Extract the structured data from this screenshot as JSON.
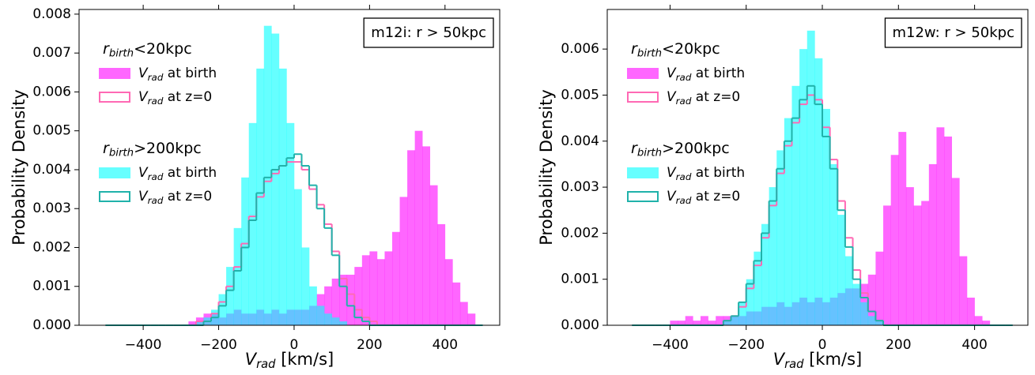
{
  "chart_data": [
    {
      "type": "histogram",
      "annotation": "m12i: r > 50kpc",
      "annotation_location": "upper right",
      "xlabel": [
        "V",
        "rad",
        " [km/s]"
      ],
      "ylabel": "Probability Density",
      "legend_location": "upper left",
      "xlim": [
        -570,
        545
      ],
      "ylim": [
        0,
        0.00812
      ],
      "xticks": [
        {
          "value": -400,
          "label": "−400"
        },
        {
          "value": -200,
          "label": "−200"
        },
        0,
        200,
        400
      ],
      "yticks": [
        {
          "value": 0,
          "label": "0.000"
        },
        {
          "value": 0.001,
          "label": "0.001"
        },
        {
          "value": 0.002,
          "label": "0.002"
        },
        {
          "value": 0.003,
          "label": "0.003"
        },
        {
          "value": 0.004,
          "label": "0.004"
        },
        {
          "value": 0.005,
          "label": "0.005"
        },
        {
          "value": 0.006,
          "label": "0.006"
        },
        {
          "value": 0.007,
          "label": "0.007"
        },
        {
          "value": 0.008,
          "label": "0.008"
        }
      ],
      "bins": [
        -500,
        -480,
        -460,
        -440,
        -420,
        -400,
        -380,
        -360,
        -340,
        -320,
        -300,
        -280,
        -260,
        -240,
        -220,
        -200,
        -180,
        -160,
        -140,
        -120,
        -100,
        -80,
        -60,
        -40,
        -20,
        0,
        20,
        40,
        60,
        80,
        100,
        120,
        140,
        160,
        180,
        200,
        220,
        240,
        260,
        280,
        300,
        320,
        340,
        360,
        380,
        400,
        420,
        440,
        460,
        480,
        500
      ],
      "groups": [
        {
          "title": [
            "r",
            "birth",
            "<20kpc"
          ],
          "series": [
            {
              "name": [
                "V",
                "rad",
                " at birth"
              ],
              "style": "filled",
              "color": "#ff00ff",
              "alpha": 0.6,
              "values": [
                0,
                0,
                0,
                0,
                0,
                0,
                0,
                0,
                0,
                0,
                0,
                0.0001,
                0.0002,
                0.0003,
                0.0003,
                0.0002,
                0.0003,
                0.0004,
                0.0003,
                0.0003,
                0.0004,
                0.0003,
                0.0004,
                0.0003,
                0.0004,
                0.0004,
                0.0004,
                0.0005,
                0.0008,
                0.001,
                0.0012,
                0.0013,
                0.0013,
                0.0015,
                0.0018,
                0.0019,
                0.0017,
                0.0019,
                0.0024,
                0.0033,
                0.0045,
                0.005,
                0.0046,
                0.0036,
                0.0026,
                0.0017,
                0.0011,
                0.0006,
                0.0003,
                0
              ]
            },
            {
              "name": [
                "V",
                "rad",
                " at z=0"
              ],
              "style": "step",
              "color": "#ff69b4",
              "values": [
                0,
                0,
                0,
                0,
                0,
                0,
                0,
                0,
                0,
                0,
                0,
                0,
                0.0001,
                0.0001,
                0.0003,
                0.0006,
                0.001,
                0.0015,
                0.0021,
                0.0028,
                0.0033,
                0.0037,
                0.0039,
                0.0041,
                0.0042,
                0.0042,
                0.004,
                0.0035,
                0.0031,
                0.0026,
                0.0019,
                0.0012,
                0.0008,
                0.0004,
                0.0002,
                0.0001,
                0,
                0,
                0,
                0,
                0,
                0,
                0,
                0,
                0,
                0,
                0,
                0,
                0,
                0
              ]
            }
          ]
        },
        {
          "title": [
            "r",
            "birth",
            ">200kpc"
          ],
          "series": [
            {
              "name": [
                "V",
                "rad",
                " at birth"
              ],
              "style": "filled",
              "color": "#00ffff",
              "alpha": 0.6,
              "values": [
                0,
                0,
                0,
                0,
                0,
                0,
                0,
                0,
                0,
                0,
                0,
                0,
                0.0001,
                0.0002,
                0.0004,
                0.0008,
                0.0015,
                0.0025,
                0.0038,
                0.0052,
                0.0066,
                0.0077,
                0.0075,
                0.0066,
                0.0052,
                0.0035,
                0.002,
                0.001,
                0.0005,
                0.0003,
                0.0002,
                0.0001,
                0,
                0,
                0,
                0,
                0,
                0,
                0,
                0,
                0,
                0,
                0,
                0,
                0,
                0,
                0,
                0,
                0,
                0
              ]
            },
            {
              "name": [
                "V",
                "rad",
                " at z=0"
              ],
              "style": "step",
              "color": "#20b2aa",
              "values": [
                0,
                0,
                0,
                0,
                0,
                0,
                0,
                0,
                0,
                0,
                0,
                0,
                0,
                0.0001,
                0.0002,
                0.0005,
                0.0009,
                0.0014,
                0.002,
                0.0027,
                0.0034,
                0.0038,
                0.004,
                0.0041,
                0.0043,
                0.0044,
                0.0041,
                0.0036,
                0.003,
                0.0025,
                0.0018,
                0.001,
                0.0005,
                0.0002,
                0.0001,
                0,
                0,
                0,
                0,
                0,
                0,
                0,
                0,
                0,
                0,
                0,
                0,
                0,
                0,
                0
              ]
            }
          ]
        }
      ]
    },
    {
      "type": "histogram",
      "annotation": "m12w: r > 50kpc",
      "annotation_location": "upper right",
      "xlabel": [
        "V",
        "rad",
        " [km/s]"
      ],
      "ylabel": "Probability Density",
      "legend_location": "upper left",
      "xlim": [
        -565,
        540
      ],
      "ylim": [
        0,
        0.00686
      ],
      "xticks": [
        {
          "value": -400,
          "label": "−400"
        },
        {
          "value": -200,
          "label": "−200"
        },
        0,
        200,
        400
      ],
      "yticks": [
        {
          "value": 0,
          "label": "0.000"
        },
        {
          "value": 0.001,
          "label": "0.001"
        },
        {
          "value": 0.002,
          "label": "0.002"
        },
        {
          "value": 0.003,
          "label": "0.003"
        },
        {
          "value": 0.004,
          "label": "0.004"
        },
        {
          "value": 0.005,
          "label": "0.005"
        },
        {
          "value": 0.006,
          "label": "0.006"
        }
      ],
      "bins": [
        -500,
        -480,
        -460,
        -440,
        -420,
        -400,
        -380,
        -360,
        -340,
        -320,
        -300,
        -280,
        -260,
        -240,
        -220,
        -200,
        -180,
        -160,
        -140,
        -120,
        -100,
        -80,
        -60,
        -40,
        -20,
        0,
        20,
        40,
        60,
        80,
        100,
        120,
        140,
        160,
        180,
        200,
        220,
        240,
        260,
        280,
        300,
        320,
        340,
        360,
        380,
        400,
        420,
        440,
        460,
        480,
        500
      ],
      "groups": [
        {
          "title": [
            "r",
            "birth",
            "<20kpc"
          ],
          "series": [
            {
              "name": [
                "V",
                "rad",
                " at birth"
              ],
              "style": "filled",
              "color": "#ff00ff",
              "alpha": 0.6,
              "values": [
                0,
                0,
                0,
                0,
                0,
                0.0001,
                0.0001,
                0.0002,
                0.0001,
                0.0002,
                0.0001,
                0.0002,
                0.0002,
                0.0002,
                0.0002,
                0.0003,
                0.0003,
                0.0004,
                0.0004,
                0.0005,
                0.0004,
                0.0005,
                0.0006,
                0.0005,
                0.0006,
                0.0005,
                0.0006,
                0.0007,
                0.0008,
                0.0008,
                0.0009,
                0.0011,
                0.0016,
                0.0026,
                0.0037,
                0.0042,
                0.003,
                0.0026,
                0.0027,
                0.0035,
                0.0043,
                0.0041,
                0.0032,
                0.0015,
                0.0006,
                0.0002,
                0.0001,
                0,
                0,
                0
              ]
            },
            {
              "name": [
                "V",
                "rad",
                " at z=0"
              ],
              "style": "step",
              "color": "#ff69b4",
              "values": [
                0,
                0,
                0,
                0,
                0,
                0,
                0,
                0,
                0,
                0,
                0,
                0,
                0.0001,
                0.0002,
                0.0004,
                0.0008,
                0.0013,
                0.0019,
                0.0026,
                0.0033,
                0.0039,
                0.0044,
                0.0048,
                0.005,
                0.0049,
                0.0043,
                0.0036,
                0.0027,
                0.0019,
                0.0012,
                0.0007,
                0.0003,
                0.0001,
                0,
                0,
                0,
                0,
                0,
                0,
                0,
                0,
                0,
                0,
                0,
                0,
                0,
                0,
                0,
                0,
                0
              ]
            }
          ]
        },
        {
          "title": [
            "r",
            "birth",
            ">200kpc"
          ],
          "series": [
            {
              "name": [
                "V",
                "rad",
                " at birth"
              ],
              "style": "filled",
              "color": "#00ffff",
              "alpha": 0.6,
              "values": [
                0,
                0,
                0,
                0,
                0,
                0,
                0,
                0,
                0,
                0,
                0,
                0,
                0.0001,
                0.0002,
                0.0005,
                0.001,
                0.0016,
                0.0022,
                0.003,
                0.0038,
                0.0045,
                0.0052,
                0.006,
                0.0064,
                0.0058,
                0.0047,
                0.0035,
                0.0024,
                0.0015,
                0.0009,
                0.0005,
                0.0002,
                0.0001,
                0,
                0,
                0,
                0,
                0,
                0,
                0,
                0,
                0,
                0,
                0,
                0,
                0,
                0,
                0,
                0,
                0
              ]
            },
            {
              "name": [
                "V",
                "rad",
                " at z=0"
              ],
              "style": "step",
              "color": "#20b2aa",
              "values": [
                0,
                0,
                0,
                0,
                0,
                0,
                0,
                0,
                0,
                0,
                0,
                0,
                0.0001,
                0.0002,
                0.0005,
                0.0009,
                0.0014,
                0.002,
                0.0027,
                0.0034,
                0.004,
                0.0045,
                0.0049,
                0.0052,
                0.0048,
                0.0041,
                0.0034,
                0.0025,
                0.0017,
                0.001,
                0.0006,
                0.0003,
                0.0001,
                0,
                0,
                0,
                0,
                0,
                0,
                0,
                0,
                0,
                0,
                0,
                0,
                0,
                0,
                0,
                0,
                0
              ]
            }
          ]
        }
      ]
    }
  ]
}
